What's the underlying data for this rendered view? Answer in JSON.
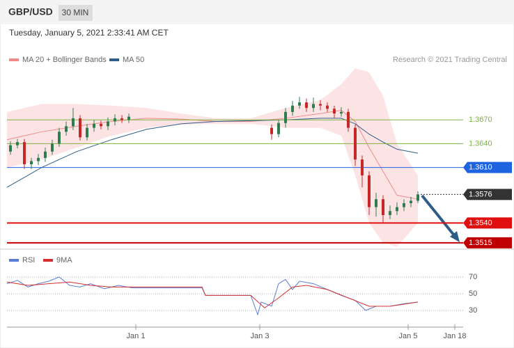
{
  "chart_data": {
    "type": "candlestick",
    "title": "GBP/USD",
    "timeframe": "30 MIN",
    "subtitle": "Tuesday, January 5, 2021 2:33:41 AM CET",
    "credit": "Research © 2021 Trading Central",
    "xlim": [
      0,
      131
    ],
    "xticks": [
      {
        "value": 37,
        "label": "Jan 1"
      },
      {
        "value": 72.6,
        "label": "Jan 3"
      },
      {
        "value": 115.2,
        "label": "Jan 5"
      },
      {
        "value": 128.6,
        "label": "Jan 18"
      }
    ],
    "ylim": [
      1.3507,
      1.3786
    ],
    "candles": {
      "up_color": "#2e7d4f",
      "down_color": "#c62828",
      "x": [
        1,
        3,
        5,
        7,
        9,
        11,
        13,
        15,
        17,
        19,
        21,
        23,
        25,
        27,
        29,
        31,
        33,
        35,
        76,
        78,
        80,
        82,
        84,
        86,
        88,
        90,
        92,
        94,
        96,
        98,
        100,
        102,
        104,
        106,
        108,
        110,
        112,
        114,
        116,
        118
      ],
      "open": [
        1.363,
        1.3638,
        1.3642,
        1.3614,
        1.3618,
        1.3622,
        1.363,
        1.364,
        1.3655,
        1.3662,
        1.3672,
        1.3648,
        1.366,
        1.3665,
        1.3662,
        1.3668,
        1.3672,
        1.367,
        1.366,
        1.3652,
        1.3666,
        1.368,
        1.3688,
        1.3692,
        1.3685,
        1.369,
        1.3688,
        1.3684,
        1.3678,
        1.368,
        1.366,
        1.362,
        1.36,
        1.356,
        1.357,
        1.355,
        1.3555,
        1.356,
        1.3565,
        1.3568
      ],
      "high": [
        1.3643,
        1.3646,
        1.3646,
        1.3622,
        1.3627,
        1.3635,
        1.3645,
        1.366,
        1.3668,
        1.3685,
        1.3676,
        1.3665,
        1.367,
        1.3669,
        1.3673,
        1.3677,
        1.3676,
        1.3678,
        1.3664,
        1.367,
        1.3685,
        1.3694,
        1.3699,
        1.3697,
        1.3698,
        1.3695,
        1.3692,
        1.3688,
        1.3686,
        1.3684,
        1.3664,
        1.3625,
        1.3605,
        1.3578,
        1.3575,
        1.3562,
        1.3566,
        1.357,
        1.3573,
        1.358
      ],
      "low": [
        1.3626,
        1.3634,
        1.3608,
        1.3608,
        1.3613,
        1.3617,
        1.3626,
        1.3636,
        1.365,
        1.3657,
        1.3644,
        1.3644,
        1.3655,
        1.3658,
        1.3657,
        1.3663,
        1.3666,
        1.3666,
        1.3645,
        1.3648,
        1.366,
        1.3675,
        1.3684,
        1.368,
        1.368,
        1.3682,
        1.368,
        1.3672,
        1.3674,
        1.3655,
        1.3612,
        1.3585,
        1.355,
        1.3548,
        1.354,
        1.3545,
        1.355,
        1.3555,
        1.356,
        1.3565
      ],
      "close": [
        1.3638,
        1.3642,
        1.3614,
        1.3618,
        1.3622,
        1.363,
        1.364,
        1.3655,
        1.3662,
        1.3672,
        1.3648,
        1.366,
        1.3665,
        1.3662,
        1.3668,
        1.3672,
        1.367,
        1.3674,
        1.3652,
        1.3666,
        1.368,
        1.3688,
        1.3692,
        1.3685,
        1.369,
        1.3688,
        1.3684,
        1.3678,
        1.368,
        1.366,
        1.362,
        1.36,
        1.356,
        1.357,
        1.355,
        1.3555,
        1.356,
        1.3565,
        1.3568,
        1.3576
      ]
    },
    "bands": {
      "name": "MA 20 + Bollinger Bands",
      "color": "#f08a8a",
      "fill": "#fde4e4",
      "x": [
        0,
        10,
        20,
        30,
        40,
        50,
        60,
        70,
        80,
        90,
        96,
        100,
        104,
        108,
        112,
        118
      ],
      "upper": [
        1.368,
        1.369,
        1.369,
        1.3688,
        1.3685,
        1.3678,
        1.3672,
        1.3672,
        1.3685,
        1.3695,
        1.3715,
        1.3735,
        1.373,
        1.37,
        1.364,
        1.36
      ],
      "lower": [
        1.361,
        1.362,
        1.3635,
        1.365,
        1.366,
        1.3664,
        1.3665,
        1.3665,
        1.366,
        1.366,
        1.365,
        1.36,
        1.354,
        1.3515,
        1.351,
        1.354
      ],
      "ma": [
        1.3645,
        1.3655,
        1.3662,
        1.3668,
        1.3672,
        1.3671,
        1.3668,
        1.3668,
        1.3672,
        1.3678,
        1.3682,
        1.3668,
        1.3635,
        1.3605,
        1.3575,
        1.357
      ]
    },
    "ma50": {
      "name": "MA 50",
      "color": "#2f5d8a",
      "x": [
        0,
        10,
        20,
        30,
        40,
        50,
        60,
        70,
        80,
        90,
        96,
        100,
        104,
        108,
        112,
        118
      ],
      "values": [
        1.3585,
        1.361,
        1.363,
        1.3645,
        1.3658,
        1.3665,
        1.3668,
        1.3669,
        1.367,
        1.3672,
        1.3672,
        1.3665,
        1.3652,
        1.3642,
        1.3633,
        1.3628
      ]
    },
    "levels": [
      {
        "value": 1.367,
        "label": "1.3670",
        "color": "#7cb342",
        "style": "text"
      },
      {
        "value": 1.364,
        "label": "1.3640",
        "color": "#7cb342",
        "style": "text"
      },
      {
        "value": 1.361,
        "label": "1.3610",
        "color": "#1e63e0",
        "style": "box"
      },
      {
        "value": 1.3576,
        "label": "1.3576",
        "color": "#333333",
        "style": "dotted"
      },
      {
        "value": 1.354,
        "label": "1.3540",
        "color": "#e01010",
        "style": "box"
      },
      {
        "value": 1.3515,
        "label": "1.3515",
        "color": "#c00000",
        "style": "box"
      }
    ],
    "rsi": {
      "type": "line",
      "ylim": [
        10,
        100
      ],
      "yticks": [
        70,
        50,
        30
      ],
      "series": [
        {
          "name": "RSI",
          "color": "#5b7fd6",
          "x": [
            0,
            3,
            6,
            9,
            12,
            15,
            18,
            21,
            24,
            28,
            32,
            36,
            40,
            56,
            57,
            70,
            72,
            73,
            76,
            78,
            80,
            82,
            84,
            88,
            92,
            96,
            100,
            103,
            106,
            110,
            114,
            118
          ],
          "values": [
            62,
            66,
            58,
            62,
            65,
            70,
            60,
            58,
            62,
            56,
            60,
            57,
            57,
            57,
            48,
            48,
            25,
            40,
            35,
            62,
            67,
            55,
            65,
            62,
            55,
            48,
            42,
            30,
            35,
            35,
            38,
            40
          ]
        },
        {
          "name": "9MA",
          "color": "#d32f2f",
          "x": [
            0,
            6,
            12,
            18,
            24,
            30,
            36,
            56,
            57,
            70,
            74,
            78,
            82,
            86,
            92,
            98,
            104,
            110,
            118
          ],
          "values": [
            64,
            60,
            62,
            64,
            60,
            58,
            58,
            58,
            48,
            48,
            33,
            45,
            58,
            60,
            55,
            45,
            35,
            35,
            40
          ]
        }
      ]
    }
  }
}
